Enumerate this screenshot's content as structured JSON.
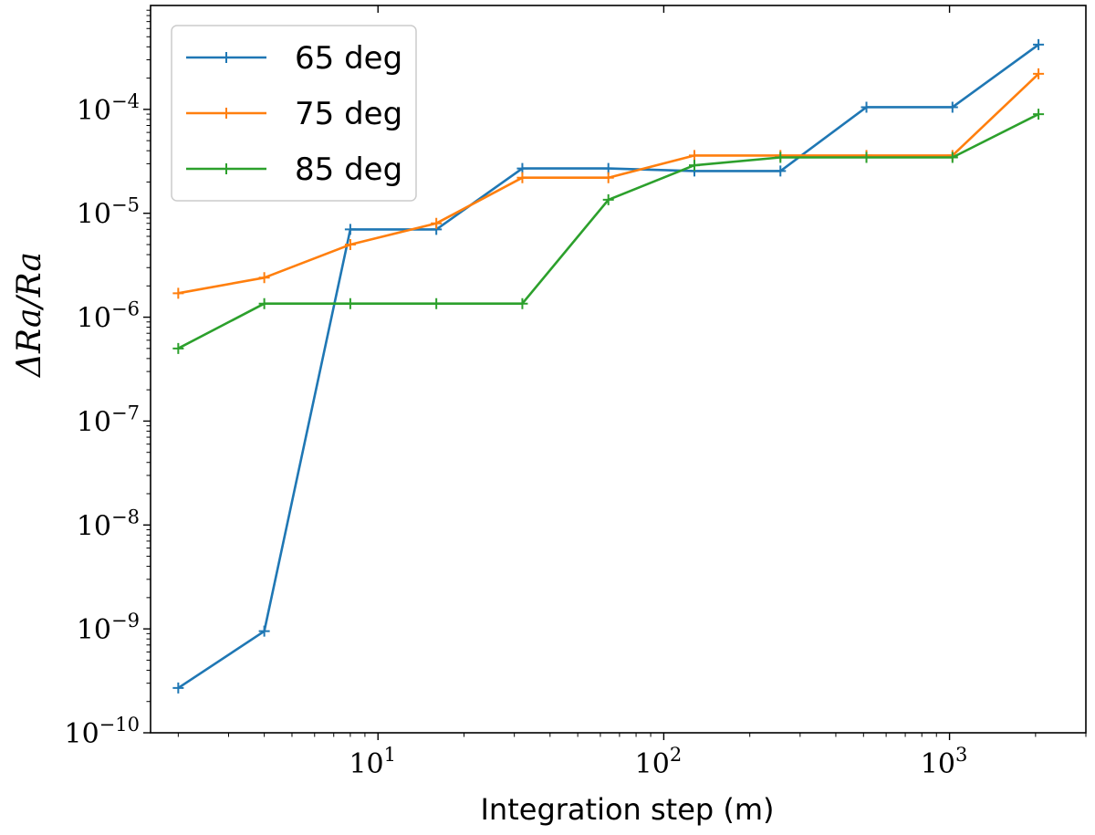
{
  "chart_data": {
    "type": "line",
    "title": "",
    "xlabel": "Integration step (m)",
    "ylabel": "ΔRa/Ra",
    "xscale": "log",
    "yscale": "log",
    "xlim": [
      1.6,
      3000
    ],
    "ylim": [
      1e-10,
      0.001
    ],
    "x_ticks": [
      {
        "value": 10,
        "base": "10",
        "exp": "1"
      },
      {
        "value": 100,
        "base": "10",
        "exp": "2"
      },
      {
        "value": 1000,
        "base": "10",
        "exp": "3"
      }
    ],
    "y_ticks": [
      {
        "value": 1e-10,
        "base": "10",
        "exp": "−10"
      },
      {
        "value": 1e-09,
        "base": "10",
        "exp": "−9"
      },
      {
        "value": 1e-08,
        "base": "10",
        "exp": "−8"
      },
      {
        "value": 1e-07,
        "base": "10",
        "exp": "−7"
      },
      {
        "value": 1e-06,
        "base": "10",
        "exp": "−6"
      },
      {
        "value": 1e-05,
        "base": "10",
        "exp": "−5"
      },
      {
        "value": 0.0001,
        "base": "10",
        "exp": "−4"
      }
    ],
    "x": [
      2,
      4,
      8,
      16,
      32,
      64,
      128,
      256,
      512,
      1024,
      2048
    ],
    "series": [
      {
        "name": "65 deg",
        "color": "#1f77b4",
        "values": [
          2.7e-10,
          9.5e-10,
          7e-06,
          7e-06,
          2.7e-05,
          2.7e-05,
          2.55e-05,
          2.55e-05,
          0.000105,
          0.000105,
          0.00042
        ]
      },
      {
        "name": "75 deg",
        "color": "#ff7f0e",
        "values": [
          1.7e-06,
          2.4e-06,
          5e-06,
          8e-06,
          2.2e-05,
          2.2e-05,
          3.6e-05,
          3.6e-05,
          3.6e-05,
          3.6e-05,
          0.00022
        ]
      },
      {
        "name": "85 deg",
        "color": "#2ca02c",
        "values": [
          5e-07,
          1.35e-06,
          1.35e-06,
          1.35e-06,
          1.35e-06,
          1.35e-05,
          2.9e-05,
          3.45e-05,
          3.45e-05,
          3.45e-05,
          9e-05
        ]
      }
    ],
    "legend_position": "top-left",
    "grid": false
  }
}
